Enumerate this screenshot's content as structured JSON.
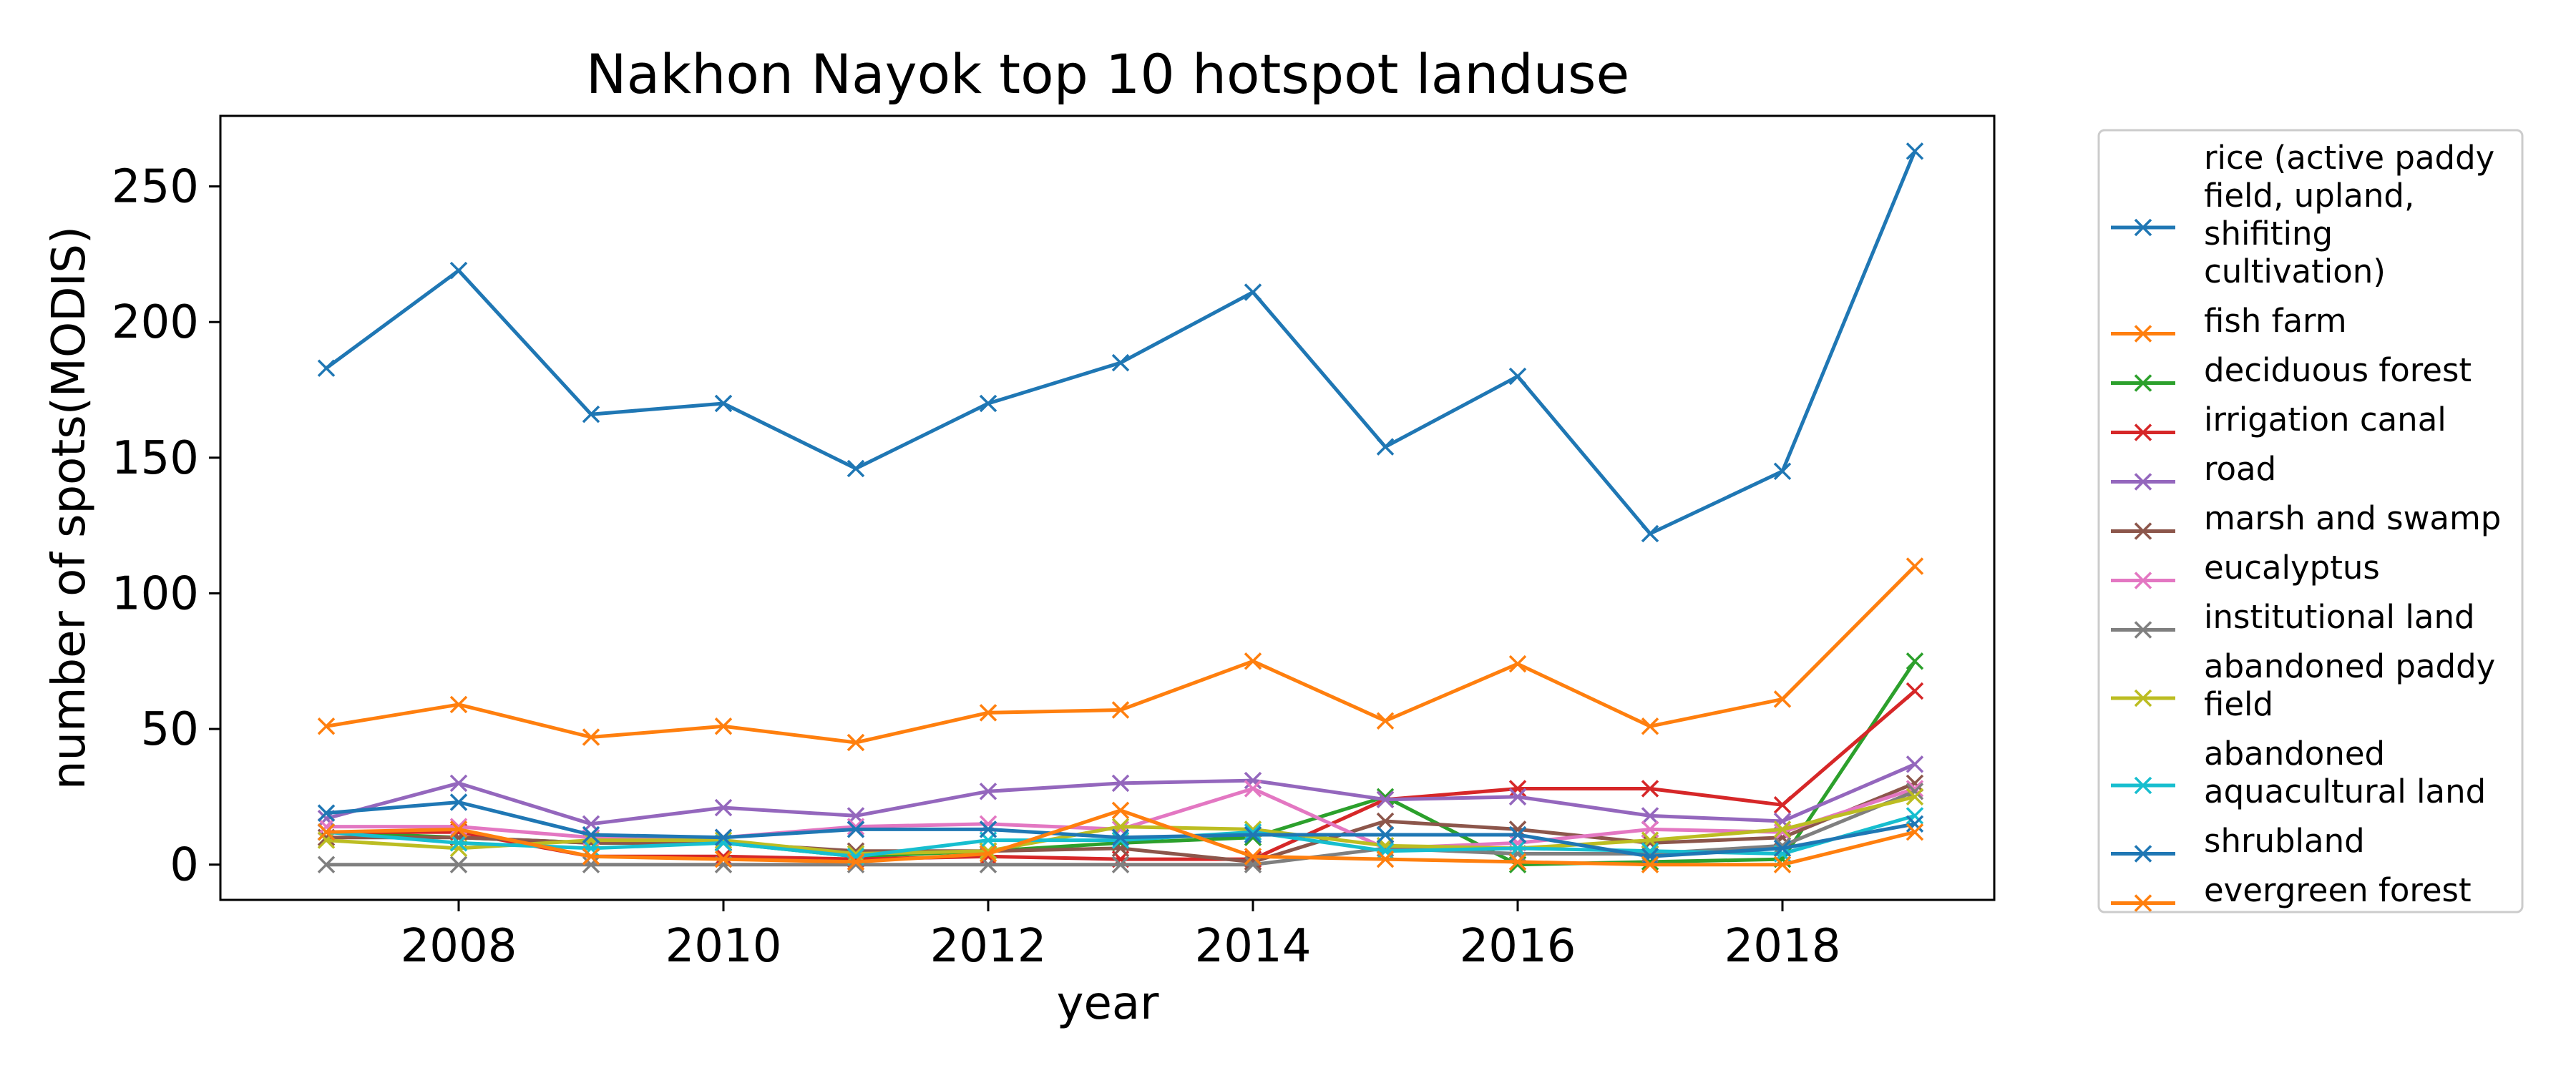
{
  "chart_data": {
    "type": "line",
    "title": "Nakhon Nayok top 10 hotspot landuse",
    "xlabel": "year",
    "ylabel": "number of spots(MODIS)",
    "xlim": [
      2006.2,
      2019.6
    ],
    "ylim": [
      -13,
      276
    ],
    "xticks": [
      2008,
      2010,
      2012,
      2014,
      2016,
      2018
    ],
    "yticks": [
      0,
      50,
      100,
      150,
      200,
      250
    ],
    "grid": false,
    "legend_position": "outside-right",
    "marker": "x",
    "x": [
      2007,
      2008,
      2009,
      2010,
      2011,
      2012,
      2013,
      2014,
      2015,
      2016,
      2017,
      2018,
      2019
    ],
    "series": [
      {
        "name": "rice (active paddy field, upland, shifiting cultivation)",
        "label_lines": [
          "rice (active paddy",
          "field, upland,",
          "shifiting",
          "cultivation)"
        ],
        "color": "#1f77b4",
        "values": [
          183,
          219,
          166,
          170,
          146,
          170,
          185,
          211,
          154,
          180,
          122,
          145,
          263
        ]
      },
      {
        "name": "fish farm",
        "label_lines": [
          "fish farm"
        ],
        "color": "#ff7f0e",
        "values": [
          51,
          59,
          47,
          51,
          45,
          56,
          57,
          75,
          53,
          74,
          51,
          61,
          110
        ]
      },
      {
        "name": "deciduous forest",
        "label_lines": [
          "deciduous forest"
        ],
        "color": "#2ca02c",
        "values": [
          12,
          10,
          8,
          8,
          3,
          5,
          8,
          10,
          25,
          0,
          1,
          2,
          75
        ]
      },
      {
        "name": "irrigation canal",
        "label_lines": [
          "irrigation canal"
        ],
        "color": "#d62728",
        "values": [
          12,
          12,
          3,
          3,
          2,
          3,
          2,
          2,
          24,
          28,
          28,
          22,
          64
        ]
      },
      {
        "name": "road",
        "label_lines": [
          "road"
        ],
        "color": "#9467bd",
        "values": [
          17,
          30,
          15,
          21,
          18,
          27,
          30,
          31,
          24,
          25,
          18,
          16,
          37
        ]
      },
      {
        "name": "marsh and swamp",
        "label_lines": [
          "marsh and swamp"
        ],
        "color": "#8c564b",
        "values": [
          10,
          10,
          8,
          8,
          5,
          5,
          6,
          1,
          16,
          13,
          8,
          10,
          30
        ]
      },
      {
        "name": "eucalyptus",
        "label_lines": [
          "eucalyptus"
        ],
        "color": "#e377c2",
        "values": [
          14,
          14,
          10,
          10,
          14,
          15,
          13,
          28,
          6,
          8,
          13,
          12,
          28
        ]
      },
      {
        "name": "institutional land",
        "label_lines": [
          "institutional land"
        ],
        "color": "#7f7f7f",
        "values": [
          0,
          0,
          0,
          0,
          0,
          0,
          0,
          0,
          6,
          4,
          4,
          7,
          27
        ]
      },
      {
        "name": "abandoned paddy field",
        "label_lines": [
          "abandoned paddy",
          "field"
        ],
        "color": "#bcbd22",
        "values": [
          9,
          6,
          9,
          9,
          4,
          5,
          14,
          13,
          7,
          6,
          9,
          13,
          25
        ]
      },
      {
        "name": "abandoned aquacultural land",
        "label_lines": [
          "abandoned",
          "aquacultural land"
        ],
        "color": "#17becf",
        "values": [
          12,
          8,
          6,
          8,
          3,
          9,
          9,
          12,
          5,
          6,
          5,
          4,
          18
        ]
      },
      {
        "name": "shrubland",
        "label_lines": [
          "shrubland"
        ],
        "color": "#1f77b4",
        "values": [
          19,
          23,
          11,
          10,
          13,
          13,
          10,
          11,
          11,
          11,
          3,
          6,
          15
        ]
      },
      {
        "name": "evergreen forest",
        "label_lines": [
          "evergreen forest"
        ],
        "color": "#ff7f0e",
        "values": [
          12,
          13,
          3,
          2,
          1,
          4,
          20,
          3,
          2,
          1,
          0,
          0,
          12
        ]
      }
    ]
  }
}
